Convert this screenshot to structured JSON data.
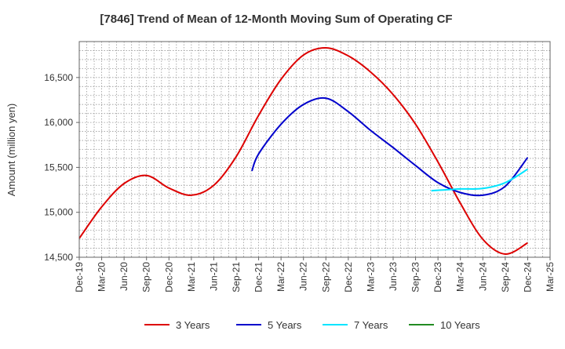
{
  "chart_data": {
    "type": "line",
    "title": "[7846]  Trend of Mean of 12-Month Moving Sum of Operating CF",
    "xlabel": "",
    "ylabel": "Amount (million yen)",
    "ylim": [
      14500,
      16900
    ],
    "yticks": [
      14500,
      15000,
      15500,
      16000,
      16500
    ],
    "ytick_labels": [
      "14,500",
      "15,000",
      "15,500",
      "16,000",
      "16,500"
    ],
    "x_categories": [
      "Dec-19",
      "Mar-20",
      "Jun-20",
      "Sep-20",
      "Dec-20",
      "Mar-21",
      "Jun-21",
      "Sep-21",
      "Dec-21",
      "Mar-22",
      "Jun-22",
      "Sep-22",
      "Dec-22",
      "Mar-23",
      "Jun-23",
      "Sep-23",
      "Dec-23",
      "Mar-24",
      "Jun-24",
      "Sep-24",
      "Dec-24",
      "Mar-25"
    ],
    "grid": true,
    "legend_position": "bottom",
    "series": [
      {
        "name": "3 Years",
        "color": "#dd0000",
        "points": [
          [
            0,
            14710
          ],
          [
            1,
            15060
          ],
          [
            2,
            15320
          ],
          [
            3,
            15410
          ],
          [
            4,
            15270
          ],
          [
            5,
            15190
          ],
          [
            6,
            15300
          ],
          [
            7,
            15620
          ],
          [
            8,
            16080
          ],
          [
            9,
            16480
          ],
          [
            10,
            16750
          ],
          [
            11,
            16830
          ],
          [
            12,
            16740
          ],
          [
            13,
            16560
          ],
          [
            14,
            16310
          ],
          [
            15,
            15980
          ],
          [
            16,
            15560
          ],
          [
            17,
            15100
          ],
          [
            18,
            14700
          ],
          [
            19,
            14535
          ],
          [
            20,
            14660
          ]
        ]
      },
      {
        "name": "5 Years",
        "color": "#0000cc",
        "points": [
          [
            7.7,
            15460
          ],
          [
            8,
            15650
          ],
          [
            9,
            15980
          ],
          [
            10,
            16200
          ],
          [
            11,
            16270
          ],
          [
            12,
            16120
          ],
          [
            13,
            15910
          ],
          [
            14,
            15720
          ],
          [
            15,
            15520
          ],
          [
            16,
            15330
          ],
          [
            17,
            15220
          ],
          [
            18,
            15190
          ],
          [
            19,
            15290
          ],
          [
            20,
            15610
          ]
        ]
      },
      {
        "name": "7 Years",
        "color": "#00e5ff",
        "points": [
          [
            15.7,
            15240
          ],
          [
            16,
            15245
          ],
          [
            17,
            15260
          ],
          [
            18,
            15265
          ],
          [
            19,
            15330
          ],
          [
            20,
            15480
          ]
        ]
      },
      {
        "name": "10 Years",
        "color": "#228b22",
        "points": []
      }
    ]
  }
}
